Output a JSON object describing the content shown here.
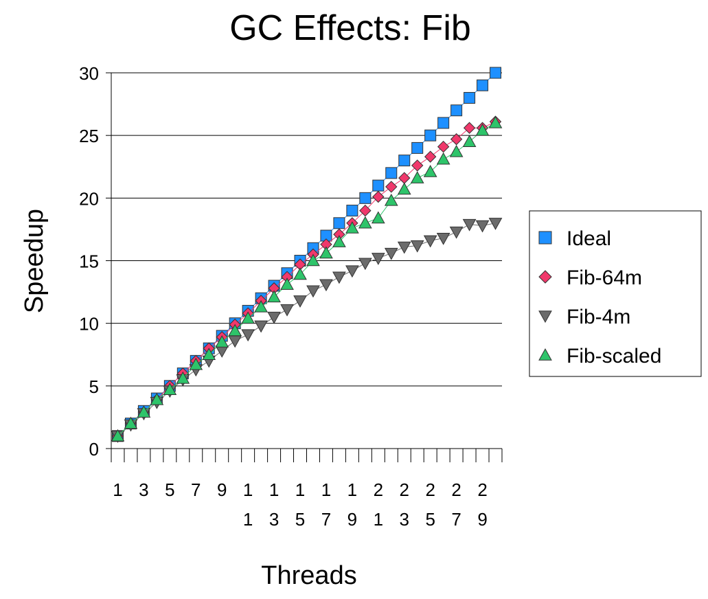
{
  "chart_data": {
    "type": "line",
    "title": "GC Effects: Fib",
    "xlabel": "Threads",
    "ylabel": "Speedup",
    "ylim": [
      0,
      30
    ],
    "y_ticks": [
      0,
      5,
      10,
      15,
      20,
      25,
      30
    ],
    "x_tick_labels": [
      {
        "line1": "1",
        "line2": ""
      },
      {
        "line1": "3",
        "line2": ""
      },
      {
        "line1": "5",
        "line2": ""
      },
      {
        "line1": "7",
        "line2": ""
      },
      {
        "line1": "9",
        "line2": ""
      },
      {
        "line1": "1",
        "line2": "1"
      },
      {
        "line1": "1",
        "line2": "3"
      },
      {
        "line1": "1",
        "line2": "5"
      },
      {
        "line1": "1",
        "line2": "7"
      },
      {
        "line1": "1",
        "line2": "9"
      },
      {
        "line1": "2",
        "line2": "1"
      },
      {
        "line1": "2",
        "line2": "3"
      },
      {
        "line1": "2",
        "line2": "5"
      },
      {
        "line1": "2",
        "line2": "7"
      },
      {
        "line1": "2",
        "line2": "9"
      }
    ],
    "x": [
      1,
      2,
      3,
      4,
      5,
      6,
      7,
      8,
      9,
      10,
      11,
      12,
      13,
      14,
      15,
      16,
      17,
      18,
      19,
      20,
      21,
      22,
      23,
      24,
      25,
      26,
      27,
      28,
      29,
      30
    ],
    "grid": true,
    "legend_position": "right",
    "series": [
      {
        "name": "Ideal",
        "marker": "square",
        "color": "#1e90ff",
        "values": [
          1,
          2,
          3,
          4,
          5,
          6,
          7,
          8,
          9,
          10,
          11,
          12,
          13,
          14,
          15,
          16,
          17,
          18,
          19,
          20,
          21,
          22,
          23,
          24,
          25,
          26,
          27,
          28,
          29,
          30
        ]
      },
      {
        "name": "Fib-64m",
        "marker": "diamond",
        "color": "#f0386b",
        "values": [
          1,
          2,
          2.9,
          3.9,
          5,
          6,
          7,
          8,
          8.9,
          9.9,
          10.8,
          11.8,
          12.8,
          13.7,
          14.7,
          15.5,
          16.3,
          17.1,
          18,
          19,
          20.1,
          20.9,
          21.6,
          22.6,
          23.3,
          24.1,
          24.7,
          25.6,
          25.6,
          26.1
        ]
      },
      {
        "name": "Fib-4m",
        "marker": "triangle-down",
        "color": "#6b6b6b",
        "values": [
          1,
          1.9,
          2.8,
          3.7,
          4.6,
          5.5,
          6.3,
          7,
          7.8,
          8.6,
          9.1,
          9.8,
          10.5,
          11.1,
          11.8,
          12.6,
          13.1,
          13.7,
          14.2,
          14.8,
          15.2,
          15.6,
          16.1,
          16.2,
          16.6,
          16.8,
          17.3,
          17.9,
          17.8,
          18
        ]
      },
      {
        "name": "Fib-scaled",
        "marker": "triangle-up",
        "color": "#2ec46a",
        "values": [
          1,
          2,
          2.9,
          3.9,
          4.7,
          5.6,
          6.7,
          7.5,
          8.5,
          9.4,
          10.4,
          11.3,
          12.1,
          13.1,
          13.9,
          15,
          15.6,
          16.5,
          17.6,
          18,
          18.4,
          19.8,
          20.7,
          21.6,
          22.1,
          23.1,
          23.7,
          24.5,
          25.4,
          26
        ]
      }
    ]
  }
}
